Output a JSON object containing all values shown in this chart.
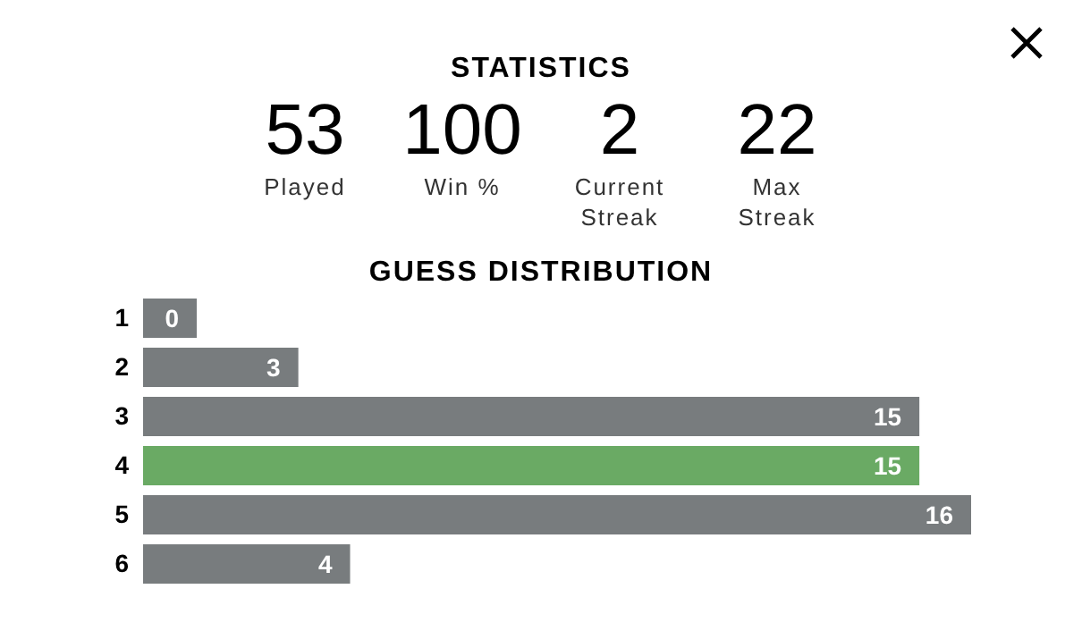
{
  "chart_data": [
    {
      "type": "other",
      "title": "STATISTICS",
      "categories": [
        "Played",
        "Win %",
        "Current Streak",
        "Max Streak"
      ],
      "values": [
        53,
        100,
        2,
        22
      ],
      "data_labels": true
    },
    {
      "type": "bar",
      "title": "GUESS DISTRIBUTION",
      "orientation": "horizontal",
      "categories": [
        "1",
        "2",
        "3",
        "4",
        "5",
        "6"
      ],
      "values": [
        0,
        3,
        15,
        15,
        16,
        4
      ],
      "colors": [
        "#787c7e",
        "#787c7e",
        "#787c7e",
        "#6aaa64",
        "#787c7e",
        "#787c7e"
      ],
      "data_labels": true
    }
  ]
}
